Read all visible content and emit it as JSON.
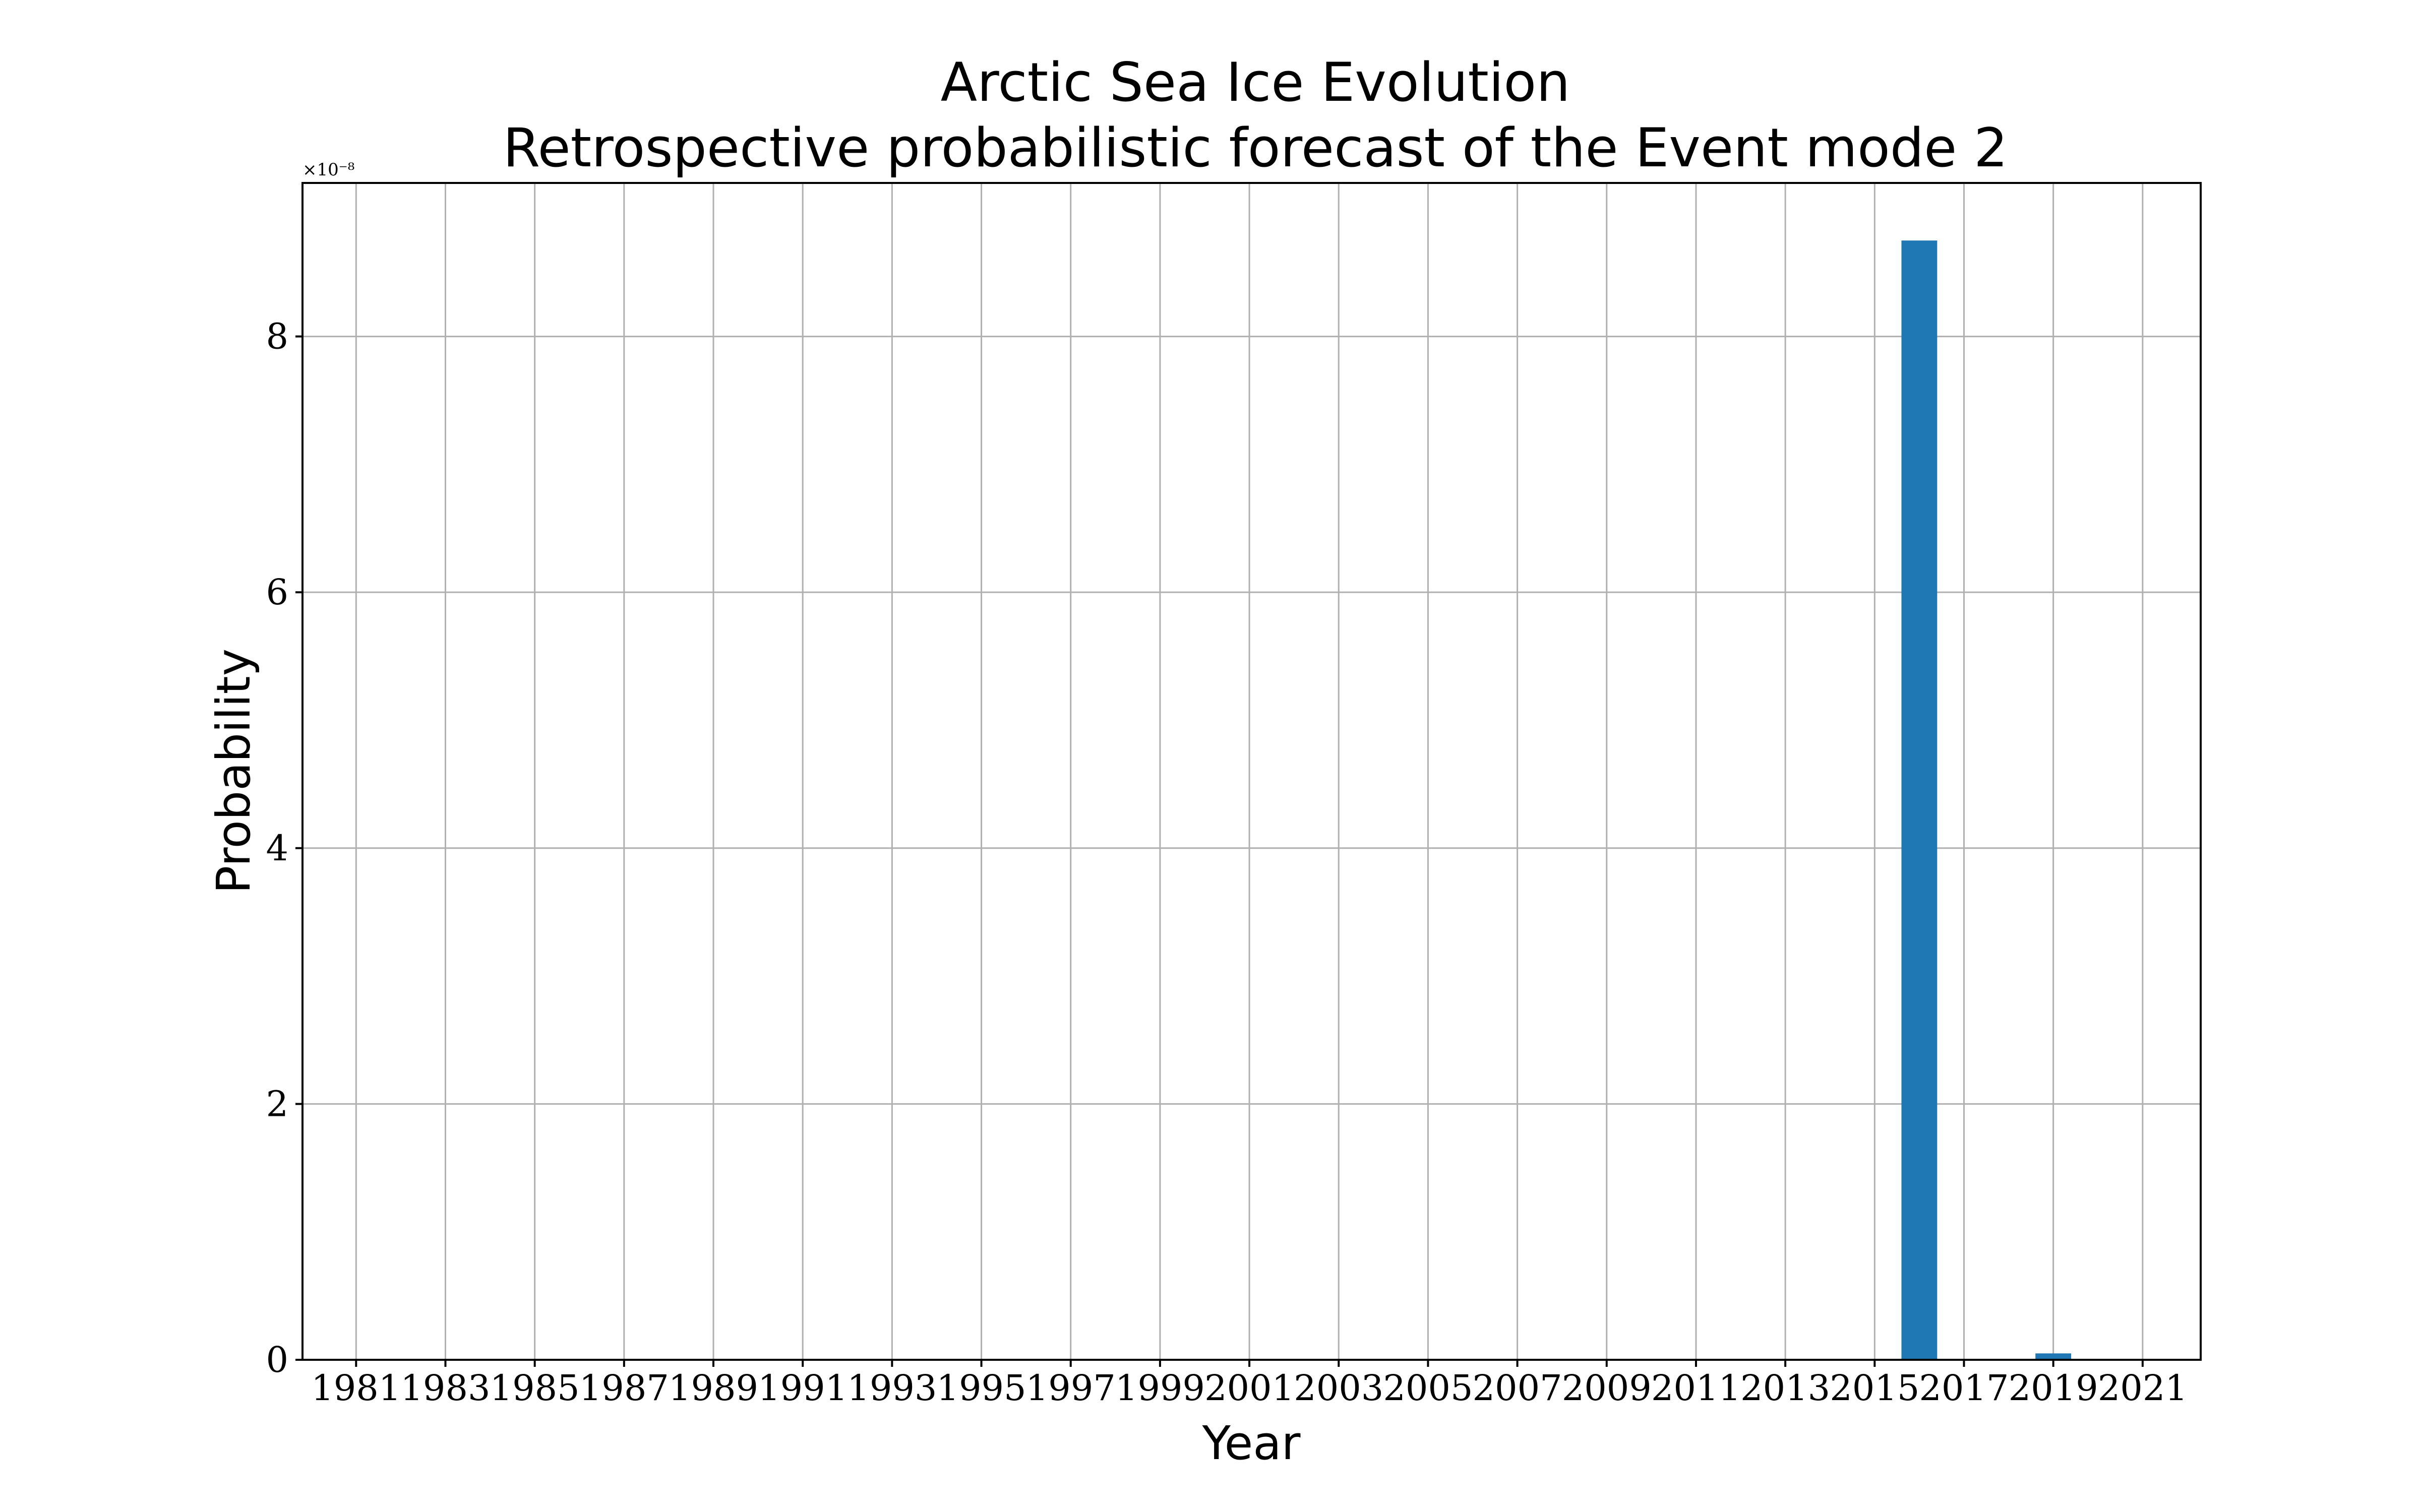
{
  "chart_data": {
    "type": "bar",
    "title": "Arctic Sea Ice Evolution",
    "subtitle": "Retrospective probabilistic forecast of the Event mode 2",
    "xlabel": "Year",
    "ylabel": "Probability",
    "offset_text": "×10⁻⁸",
    "y_scale": 1e-08,
    "x": [
      1981,
      1982,
      1983,
      1984,
      1985,
      1986,
      1987,
      1988,
      1989,
      1990,
      1991,
      1992,
      1993,
      1994,
      1995,
      1996,
      1997,
      1998,
      1999,
      2000,
      2001,
      2002,
      2003,
      2004,
      2005,
      2006,
      2007,
      2008,
      2009,
      2010,
      2011,
      2012,
      2013,
      2014,
      2015,
      2016,
      2017,
      2018,
      2019,
      2020,
      2021
    ],
    "values": [
      0,
      0,
      0,
      0,
      0,
      0,
      0,
      0,
      0,
      0,
      0,
      0,
      0,
      0,
      0,
      0,
      0,
      0,
      0,
      0,
      0,
      0,
      0,
      0,
      0,
      0,
      0,
      0,
      0,
      0,
      0,
      0,
      0,
      0,
      0,
      8.75,
      0,
      0,
      0.05,
      0,
      0
    ],
    "xticks": [
      "1981",
      "1983",
      "1985",
      "1987",
      "1989",
      "1991",
      "1993",
      "1995",
      "1997",
      "1999",
      "2001",
      "2003",
      "2005",
      "2007",
      "2009",
      "2011",
      "2013",
      "2015",
      "2017",
      "2019",
      "2021"
    ],
    "yticks": [
      0,
      2,
      4,
      6,
      8
    ],
    "xlim": [
      1979.8,
      2022.3
    ],
    "ylim": [
      0,
      9.2
    ],
    "grid": true,
    "bar_width": 0.8,
    "bar_color": "#1f77b4"
  }
}
